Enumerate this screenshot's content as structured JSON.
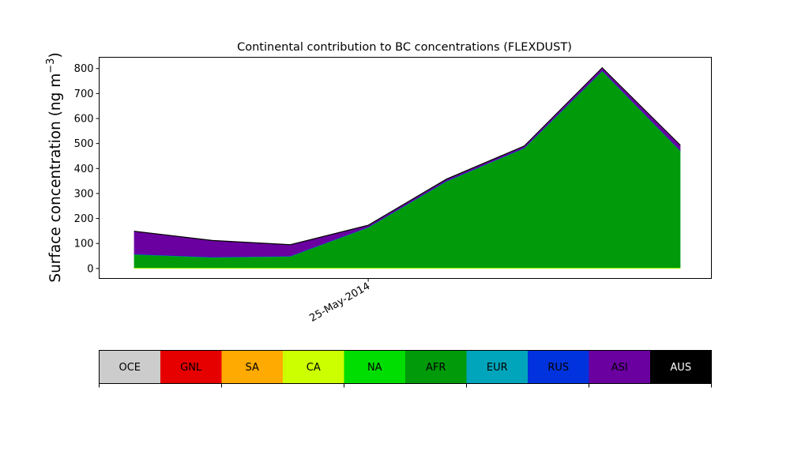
{
  "chart_data": {
    "type": "area",
    "title": "Continental contribution to BC concentrations (FLEXDUST)",
    "ylabel": "Surface concentration (ng m",
    "ylabel_unit_sup": "−3",
    "ylabel_close": ")",
    "xlabel": "",
    "ylim": [
      -40,
      845
    ],
    "yticks": [
      0,
      100,
      200,
      300,
      400,
      500,
      600,
      700,
      800
    ],
    "x": [
      0,
      1,
      2,
      3,
      4,
      5,
      6,
      7
    ],
    "xlim": [
      -0.45,
      7.4
    ],
    "xticks": [
      {
        "x": 3,
        "label": "25-May-2014"
      }
    ],
    "grid": false,
    "series": [
      {
        "name": "OCE",
        "color": "#cccccc",
        "values": [
          0,
          0,
          0,
          0,
          0,
          0,
          0,
          0
        ]
      },
      {
        "name": "GNL",
        "color": "#e60000",
        "values": [
          0,
          0,
          0,
          0,
          0,
          0,
          0,
          0
        ]
      },
      {
        "name": "SA",
        "color": "#ffaa00",
        "values": [
          0,
          0,
          0,
          0,
          0,
          0,
          0,
          0
        ]
      },
      {
        "name": "CA",
        "color": "#ccff00",
        "values": [
          3,
          3,
          3,
          3,
          3,
          3,
          3,
          3
        ]
      },
      {
        "name": "NA",
        "color": "#00dd00",
        "values": [
          1,
          1,
          1,
          1,
          1,
          1,
          1,
          1
        ]
      },
      {
        "name": "AFR",
        "color": "#009a0b",
        "values": [
          52,
          40,
          44,
          160,
          344,
          477,
          786,
          467
        ]
      },
      {
        "name": "EUR",
        "color": "#00a5bb",
        "values": [
          1,
          1,
          1,
          1,
          1,
          1,
          1,
          1
        ]
      },
      {
        "name": "RUS",
        "color": "#0033dd",
        "values": [
          1,
          1,
          1,
          1,
          1,
          1,
          1,
          1
        ]
      },
      {
        "name": "ASI",
        "color": "#6a00a0",
        "values": [
          90,
          65,
          44,
          6,
          6,
          6,
          10,
          20
        ]
      },
      {
        "name": "AUS",
        "color": "#000000",
        "values": [
          2,
          2,
          2,
          2,
          2,
          2,
          2,
          2
        ]
      }
    ],
    "legend": {
      "placement": "bottom colorbar",
      "labels": [
        "OCE",
        "GNL",
        "SA",
        "CA",
        "NA",
        "AFR",
        "EUR",
        "RUS",
        "ASI",
        "AUS"
      ],
      "label_colors": [
        "#000000",
        "#000000",
        "#000000",
        "#000000",
        "#000000",
        "#000000",
        "#000000",
        "#000000",
        "#000000",
        "#ffffff"
      ]
    }
  }
}
